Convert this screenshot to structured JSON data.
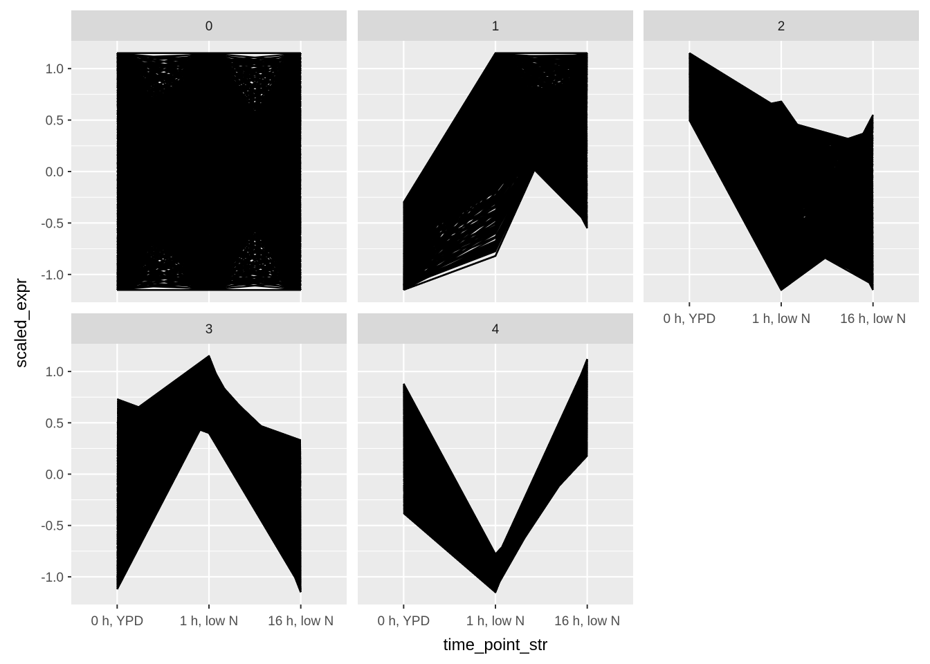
{
  "chart_data": {
    "type": "line",
    "layout": "faceted parallel-coordinate line plot",
    "xlabel": "time_point_str",
    "ylabel": "scaled_expr",
    "x": [
      "0 h, YPD",
      "1 h, low N",
      "16 h, low N"
    ],
    "y_ticks": [
      1.0,
      0.5,
      0.0,
      -0.5,
      -1.0
    ],
    "y_tick_labels": [
      "1.0",
      "0.5",
      "0.0",
      "-0.5",
      "-1.0"
    ],
    "ylim": [
      -1.27,
      1.27
    ],
    "grid": true,
    "legend": "none",
    "colors": {
      "panel_bg": "#ebebeb",
      "strip_bg": "#d9d9d9",
      "gridline": "#ffffff",
      "line": "#000000",
      "tick": "#333333"
    },
    "facets": [
      {
        "label": "0",
        "description": "dense band spanning full range at all time points",
        "profiles": [
          [
            1.15,
            1.15,
            1.15
          ],
          [
            -1.15,
            -1.15,
            -1.15
          ],
          [
            1.15,
            -1.15,
            1.15
          ],
          [
            -1.15,
            1.15,
            -1.15
          ],
          [
            0.6,
            -0.6,
            0.6
          ],
          [
            -0.6,
            0.6,
            -0.6
          ],
          [
            1.15,
            0.0,
            -1.15
          ],
          [
            -1.15,
            0.0,
            1.15
          ],
          [
            0.0,
            1.15,
            0.0
          ],
          [
            0.0,
            -1.15,
            0.0
          ],
          [
            0.9,
            0.3,
            -0.9
          ],
          [
            -0.9,
            -0.3,
            0.9
          ],
          [
            0.5,
            1.0,
            -0.5
          ],
          [
            -0.5,
            -1.0,
            0.5
          ],
          [
            1.0,
            -0.2,
            0.4
          ],
          [
            -1.0,
            0.2,
            -0.4
          ]
        ]
      },
      {
        "label": "1",
        "description": "low at 0 h, high at 1 h, mixed at 16 h",
        "profiles": [
          [
            -1.15,
            1.15,
            1.15
          ],
          [
            -0.3,
            1.15,
            -0.55
          ],
          [
            -1.15,
            -0.82,
            1.15
          ],
          [
            -0.6,
            0.2,
            0.6
          ],
          [
            -0.8,
            1.0,
            0.2
          ],
          [
            -0.4,
            0.5,
            -0.3
          ],
          [
            -1.0,
            0.7,
            0.9
          ],
          [
            -0.7,
            -0.2,
            1.0
          ],
          [
            -0.35,
            1.1,
            0.3
          ],
          [
            -0.9,
            0.4,
            -0.5
          ],
          [
            -1.1,
            0.9,
            0.6
          ],
          [
            -0.5,
            0.0,
            0.8
          ]
        ]
      },
      {
        "label": "2",
        "description": "high at 0 h, decreasing at 1 h and 16 h",
        "profiles": [
          [
            1.15,
            0.6,
            -1.15
          ],
          [
            0.5,
            -1.15,
            0.55
          ],
          [
            1.15,
            -1.15,
            -0.5
          ],
          [
            0.5,
            0.68,
            -0.6
          ],
          [
            0.9,
            0.1,
            0.4
          ],
          [
            0.7,
            -0.6,
            -1.1
          ],
          [
            1.0,
            0.5,
            0.25
          ],
          [
            0.6,
            -0.9,
            -0.2
          ],
          [
            0.8,
            0.3,
            -0.8
          ],
          [
            1.1,
            -0.3,
            0.1
          ],
          [
            0.55,
            0.6,
            -1.0
          ],
          [
            0.95,
            -1.0,
            -0.4
          ]
        ]
      },
      {
        "label": "3",
        "description": "rising to peak at 1 h, falling at 16 h",
        "profiles": [
          [
            -1.12,
            1.15,
            -1.12
          ],
          [
            0.73,
            0.4,
            -1.1
          ],
          [
            0.5,
            0.65,
            0.33
          ],
          [
            -1.12,
            0.6,
            0.3
          ],
          [
            0.5,
            1.15,
            -1.15
          ],
          [
            -0.5,
            0.9,
            -0.3
          ],
          [
            0.1,
            1.0,
            0.0
          ],
          [
            -0.8,
            0.7,
            -0.8
          ],
          [
            0.3,
            0.8,
            0.2
          ],
          [
            -1.0,
            1.1,
            -0.5
          ],
          [
            0.45,
            0.68,
            -0.9
          ],
          [
            -0.2,
            0.95,
            0.1
          ]
        ]
      },
      {
        "label": "4",
        "description": "V-shape: minimum at 1 h",
        "profiles": [
          [
            0.88,
            -0.78,
            0.18
          ],
          [
            -0.38,
            -1.15,
            1.12
          ],
          [
            0.8,
            -1.05,
            0.3
          ],
          [
            0.6,
            -0.95,
            0.9
          ],
          [
            0.4,
            -0.85,
            1.1
          ],
          [
            0.2,
            -1.1,
            0.75
          ],
          [
            0.0,
            -1.0,
            0.55
          ],
          [
            -0.2,
            -0.9,
            1.0
          ],
          [
            0.7,
            -1.12,
            0.45
          ],
          [
            -0.3,
            -1.08,
            0.85
          ],
          [
            0.25,
            -0.8,
            0.25
          ],
          [
            0.85,
            -1.15,
            1.12
          ]
        ]
      }
    ]
  }
}
